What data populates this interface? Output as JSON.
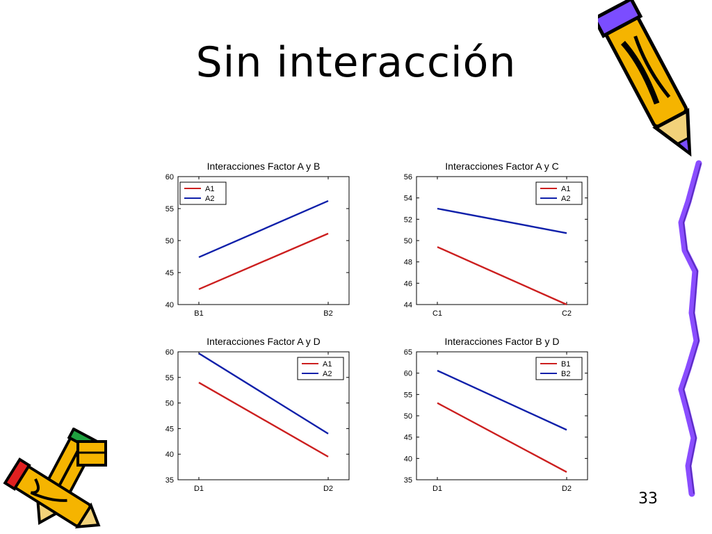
{
  "slide": {
    "title": "Sin interacción",
    "page_number": "33"
  },
  "chart_data": [
    {
      "type": "line",
      "title": "Interacciones Factor A y B",
      "categories": [
        "B1",
        "B2"
      ],
      "ylim": [
        40,
        60
      ],
      "yticks": [
        40,
        45,
        50,
        55,
        60
      ],
      "legend_position": "top-left",
      "series": [
        {
          "name": "A1",
          "values": [
            42.4,
            51.1
          ],
          "color": "#cc1f1f"
        },
        {
          "name": "A2",
          "values": [
            47.4,
            56.2
          ],
          "color": "#1020aa"
        }
      ]
    },
    {
      "type": "line",
      "title": "Interacciones Factor A y C",
      "categories": [
        "C1",
        "C2"
      ],
      "ylim": [
        44,
        56
      ],
      "yticks": [
        44,
        46,
        48,
        50,
        52,
        54,
        56
      ],
      "legend_position": "top-right",
      "series": [
        {
          "name": "A1",
          "values": [
            49.4,
            44.0
          ],
          "color": "#cc1f1f"
        },
        {
          "name": "A2",
          "values": [
            53.0,
            50.7
          ],
          "color": "#1020aa"
        }
      ]
    },
    {
      "type": "line",
      "title": "Interacciones Factor A y D",
      "categories": [
        "D1",
        "D2"
      ],
      "ylim": [
        35,
        60
      ],
      "yticks": [
        35,
        40,
        45,
        50,
        55,
        60
      ],
      "legend_position": "top-right",
      "series": [
        {
          "name": "A1",
          "values": [
            54.0,
            39.5
          ],
          "color": "#cc1f1f"
        },
        {
          "name": "A2",
          "values": [
            59.7,
            44.0
          ],
          "color": "#1020aa"
        }
      ]
    },
    {
      "type": "line",
      "title": "Interacciones Factor B y D",
      "categories": [
        "D1",
        "D2"
      ],
      "ylim": [
        35,
        65
      ],
      "yticks": [
        35,
        40,
        45,
        50,
        55,
        60,
        65
      ],
      "legend_position": "top-right",
      "series": [
        {
          "name": "B1",
          "values": [
            53.0,
            36.8
          ],
          "color": "#cc1f1f"
        },
        {
          "name": "B2",
          "values": [
            60.6,
            46.7
          ],
          "color": "#1020aa"
        }
      ]
    }
  ],
  "clipart": [
    {
      "name": "pencil-clipart-icon",
      "colors": [
        "#f5b400",
        "#7b4dff",
        "#000000"
      ]
    },
    {
      "name": "pencils-clipart-icon",
      "colors": [
        "#f5b400",
        "#e02020",
        "#20a040"
      ]
    },
    {
      "name": "squiggle-line-icon",
      "colors": [
        "#8a4dff"
      ]
    }
  ]
}
